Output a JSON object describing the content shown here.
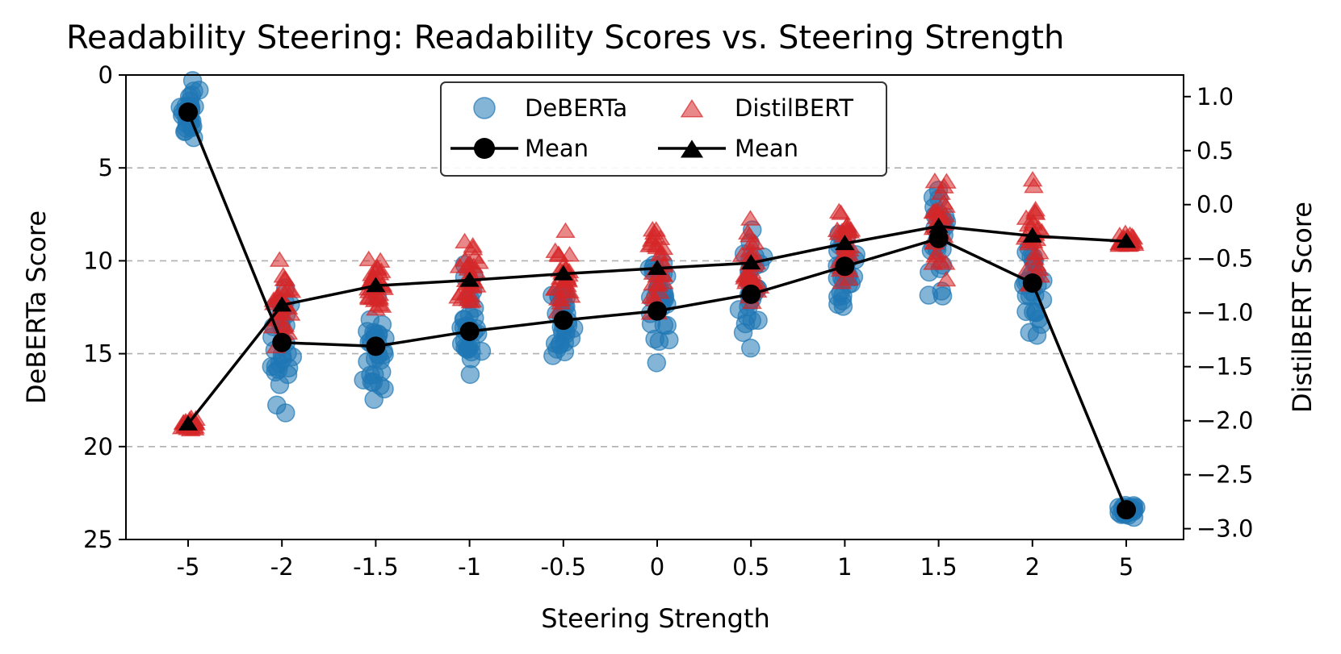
{
  "chart_data": {
    "type": "scatter",
    "title": "Readability Steering: Readability Scores vs. Steering Strength",
    "xlabel": "Steering Strength",
    "ylabel_left": "DeBERTa Score",
    "ylabel_right": "DistilBERT Score",
    "categories": [
      "-5",
      "-2",
      "-1.5",
      "-1",
      "-0.5",
      "0",
      "0.5",
      "1",
      "1.5",
      "2",
      "5"
    ],
    "left_axis": {
      "range": [
        25,
        0
      ],
      "inverted": true,
      "ticks": [
        0,
        5,
        10,
        15,
        20,
        25
      ]
    },
    "right_axis": {
      "range": [
        -3.1,
        1.2
      ],
      "ticks": [
        "1.0",
        "0.5",
        "0.0",
        "−0.5",
        "−1.0",
        "−1.5",
        "−2.0",
        "−2.5",
        "−3.0"
      ],
      "tick_values": [
        1.0,
        0.5,
        0.0,
        -0.5,
        -1.0,
        -1.5,
        -2.0,
        -2.5,
        -3.0
      ]
    },
    "grid": "horizontal dashed at left-axis ticks",
    "legend_position": "top-center",
    "series": [
      {
        "name": "DeBERTa",
        "axis": "left",
        "marker": "circle",
        "color": "#1f77b4",
        "mean": [
          2.0,
          14.4,
          14.6,
          13.8,
          13.2,
          12.7,
          11.8,
          10.3,
          8.8,
          11.2,
          23.4
        ],
        "spread": [
          1.5,
          3.0,
          2.5,
          2.5,
          2.2,
          2.6,
          2.5,
          2.2,
          2.6,
          2.7,
          0.3
        ]
      },
      {
        "name": "DistilBERT",
        "axis": "right",
        "marker": "triangle",
        "color": "#d62728",
        "mean": [
          -2.03,
          -0.93,
          -0.75,
          -0.7,
          -0.64,
          -0.59,
          -0.54,
          -0.36,
          -0.2,
          -0.29,
          -0.34
        ],
        "spread": [
          0.05,
          0.3,
          0.28,
          0.28,
          0.32,
          0.3,
          0.33,
          0.35,
          0.45,
          0.5,
          0.05
        ]
      }
    ],
    "legend": {
      "entries": [
        {
          "label": "DeBERTa",
          "marker": "circle",
          "color": "#1f77b4"
        },
        {
          "label": "DistilBERT",
          "marker": "triangle",
          "color": "#d62728"
        },
        {
          "label": "Mean",
          "marker": "circle-line",
          "color": "#000000"
        },
        {
          "label": "Mean",
          "marker": "triangle-line",
          "color": "#000000"
        }
      ]
    }
  }
}
